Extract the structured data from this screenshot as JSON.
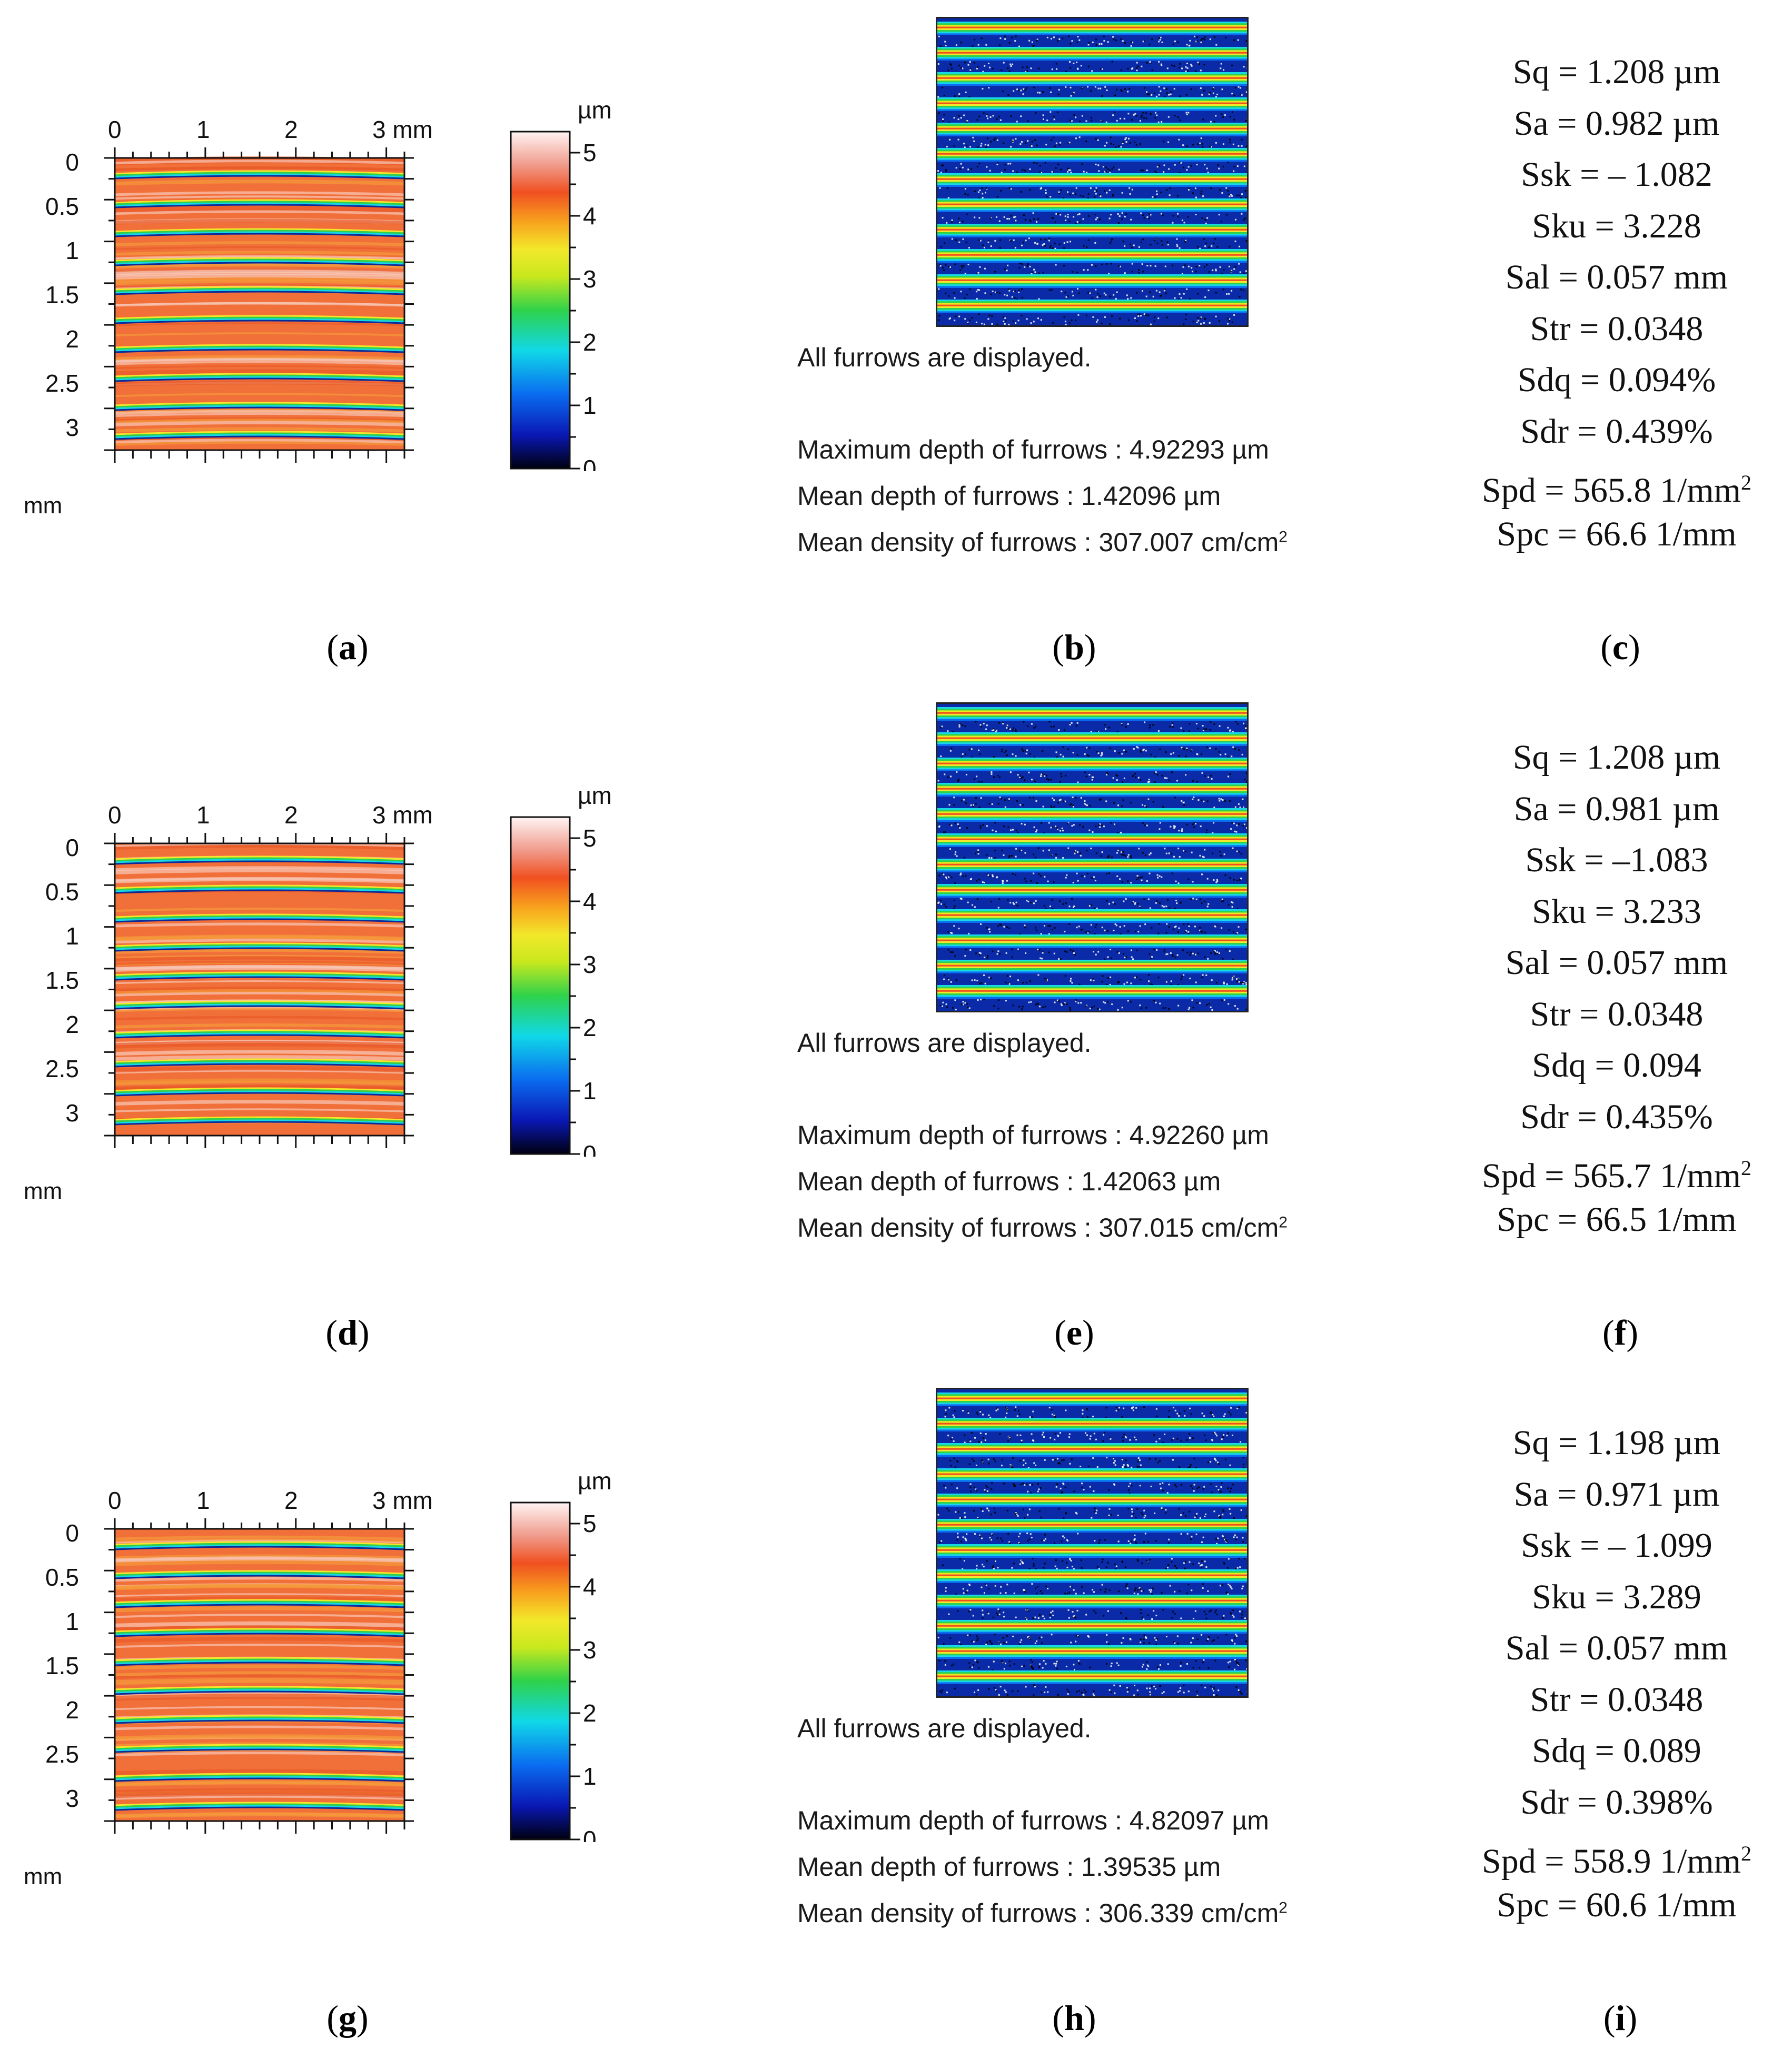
{
  "figure": {
    "rows": [
      {
        "map": {
          "x_ticks": [
            "0",
            "1",
            "2",
            "3 mm"
          ],
          "y_ticks": [
            "0",
            "0.5",
            "1",
            "1.5",
            "2",
            "2.5",
            "3"
          ],
          "y_unit": "mm",
          "colorbar_unit": "µm",
          "colorbar_ticks": [
            "5",
            "4",
            "3",
            "2",
            "1",
            "0"
          ]
        },
        "furrows": {
          "status": "All furrows are displayed.",
          "max_depth": "Maximum depth of furrows : 4.92293 µm",
          "mean_depth": "Mean depth of furrows : 1.42096 µm",
          "mean_density": "Mean density of furrows : 307.007 cm/cm",
          "density_exp": "2"
        },
        "params": [
          {
            "text": "Sq = 1.208 µm"
          },
          {
            "text": "Sa = 0.982 µm"
          },
          {
            "text": "Ssk = – 1.082"
          },
          {
            "text": "Sku = 3.228"
          },
          {
            "text": "Sal = 0.057 mm"
          },
          {
            "text": "Str = 0.0348"
          },
          {
            "text": "Sdq = 0.094%"
          },
          {
            "text": "Sdr = 0.439%"
          },
          {
            "text": "Spd = 565.8 1/mm",
            "sup": "2"
          },
          {
            "text": "Spc = 66.6 1/mm"
          }
        ],
        "labels": [
          "a",
          "b",
          "c"
        ]
      },
      {
        "map": {
          "x_ticks": [
            "0",
            "1",
            "2",
            "3 mm"
          ],
          "y_ticks": [
            "0",
            "0.5",
            "1",
            "1.5",
            "2",
            "2.5",
            "3"
          ],
          "y_unit": "mm",
          "colorbar_unit": "µm",
          "colorbar_ticks": [
            "5",
            "4",
            "3",
            "2",
            "1",
            "0"
          ]
        },
        "furrows": {
          "status": "All furrows are displayed.",
          "max_depth": "Maximum depth of furrows : 4.92260 µm",
          "mean_depth": "Mean depth of furrows : 1.42063 µm",
          "mean_density": "Mean density of furrows : 307.015 cm/cm",
          "density_exp": "2"
        },
        "params": [
          {
            "text": "Sq = 1.208 µm"
          },
          {
            "text": "Sa = 0.981 µm"
          },
          {
            "text": "Ssk = –1.083"
          },
          {
            "text": "Sku = 3.233"
          },
          {
            "text": "Sal = 0.057 mm"
          },
          {
            "text": "Str = 0.0348"
          },
          {
            "text": "Sdq = 0.094"
          },
          {
            "text": "Sdr = 0.435%"
          },
          {
            "text": "Spd = 565.7 1/mm",
            "sup": "2"
          },
          {
            "text": "Spc = 66.5 1/mm"
          }
        ],
        "labels": [
          "d",
          "e",
          "f"
        ]
      },
      {
        "map": {
          "x_ticks": [
            "0",
            "1",
            "2",
            "3 mm"
          ],
          "y_ticks": [
            "0",
            "0.5",
            "1",
            "1.5",
            "2",
            "2.5",
            "3"
          ],
          "y_unit": "mm",
          "colorbar_unit": "µm",
          "colorbar_ticks": [
            "5",
            "4",
            "3",
            "2",
            "1",
            "0"
          ]
        },
        "furrows": {
          "status": "All furrows are displayed.",
          "max_depth": "Maximum depth of furrows : 4.82097 µm",
          "mean_depth": "Mean depth of furrows : 1.39535 µm",
          "mean_density": "Mean density of furrows : 306.339 cm/cm",
          "density_exp": "2"
        },
        "params": [
          {
            "text": "Sq = 1.198 µm"
          },
          {
            "text": "Sa = 0.971 µm"
          },
          {
            "text": "Ssk = – 1.099"
          },
          {
            "text": "Sku = 3.289"
          },
          {
            "text": "Sal = 0.057 mm"
          },
          {
            "text": "Str = 0.0348"
          },
          {
            "text": "Sdq = 0.089"
          },
          {
            "text": "Sdr = 0.398%"
          },
          {
            "text": "Spd = 558.9 1/mm",
            "sup": "2"
          },
          {
            "text": "Spc = 60.6 1/mm"
          }
        ],
        "labels": [
          "g",
          "h",
          "i"
        ]
      }
    ]
  }
}
